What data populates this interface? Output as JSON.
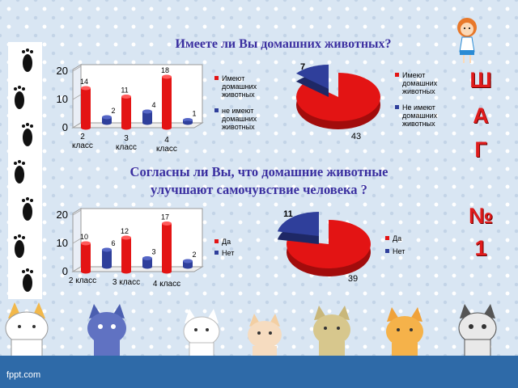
{
  "slide": {
    "title1": "Имеете ли Вы домашних животных?",
    "title2_line1": "Согласны ли Вы, что домашние животные",
    "title2_line2": "улучшают самочувствие человека  ?",
    "side_letters": [
      "Ш",
      "А",
      "Г",
      "№",
      "1"
    ],
    "watermark": "fppt.com"
  },
  "colors": {
    "red": "#e31414",
    "blue": "#2f3f9b",
    "title": "#3a2fa0",
    "side": "#e01b1b"
  },
  "chart_data": [
    {
      "type": "bar",
      "categories": [
        "2 класс",
        "3 класс",
        "4 класс"
      ],
      "series": [
        {
          "name": "Имеют домашних животных",
          "values": [
            14,
            11,
            18
          ]
        },
        {
          "name": "не имеют домашних животных",
          "values": [
            2,
            4,
            1
          ]
        }
      ],
      "ylim": [
        0,
        20
      ],
      "yticks": [
        "0",
        "10",
        "20"
      ]
    },
    {
      "type": "pie",
      "labels": [
        "Имеют домашних животных",
        "Не имеют домашних животных"
      ],
      "values": [
        43,
        7
      ]
    },
    {
      "type": "bar",
      "categories": [
        "2 класс",
        "3 класс",
        "4 класс"
      ],
      "series": [
        {
          "name": "Да",
          "values": [
            10,
            12,
            17
          ]
        },
        {
          "name": "Нет",
          "values": [
            6,
            3,
            2
          ]
        }
      ],
      "ylim": [
        0,
        20
      ],
      "yticks": [
        "0",
        "10",
        "20"
      ]
    },
    {
      "type": "pie",
      "labels": [
        "Да",
        "Нет"
      ],
      "values": [
        39,
        11
      ]
    }
  ]
}
